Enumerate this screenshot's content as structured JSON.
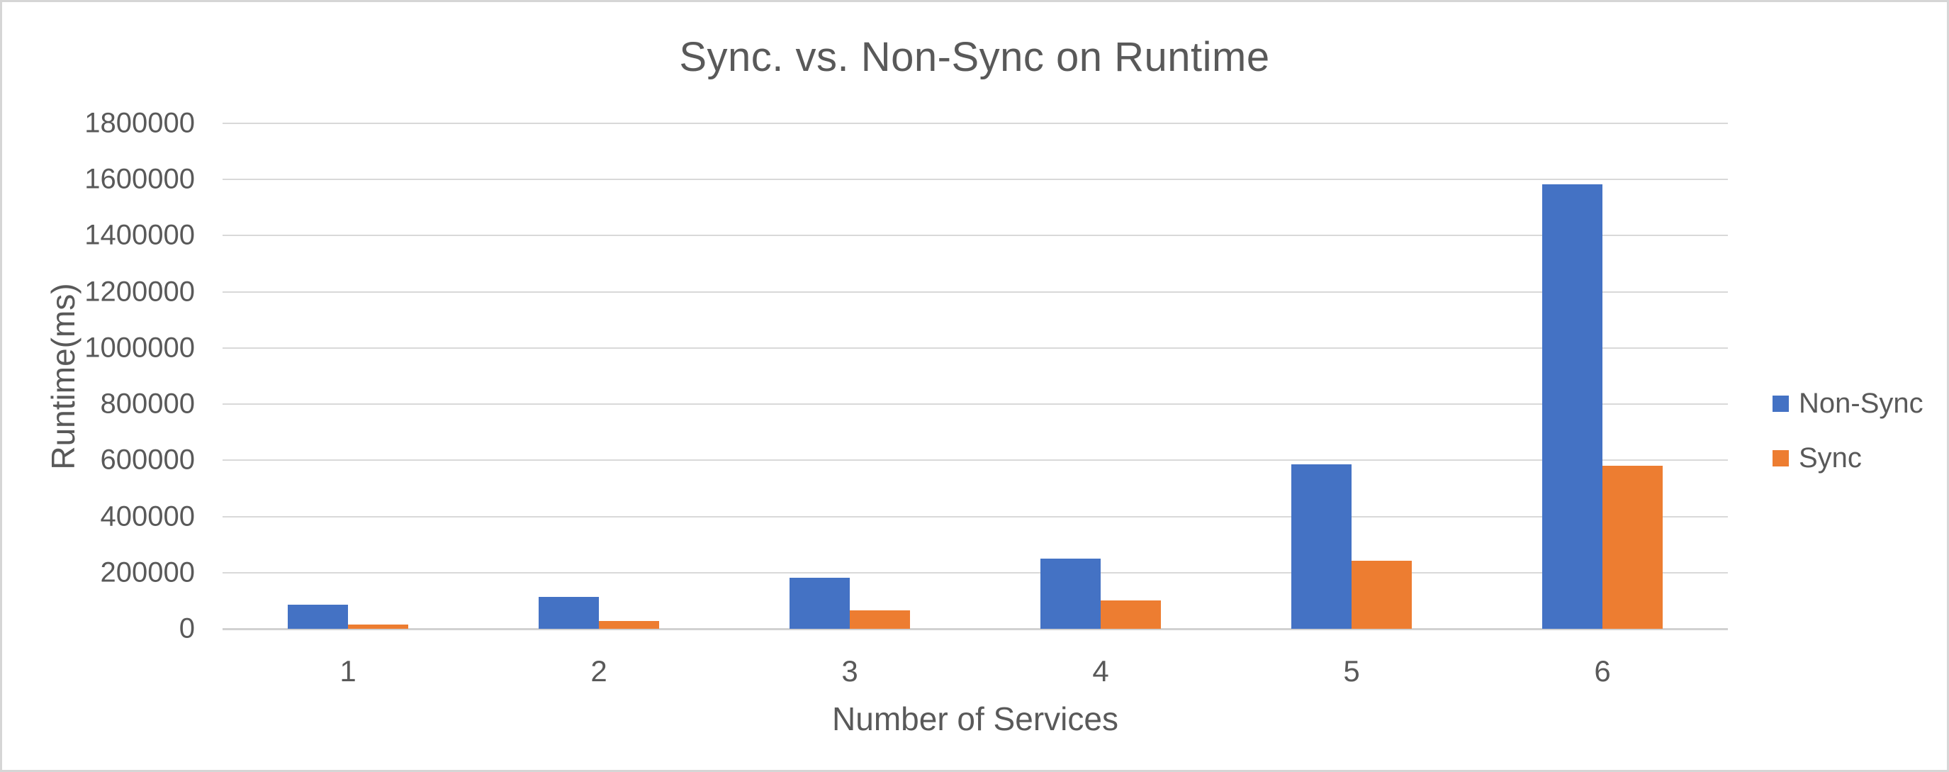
{
  "chart_data": {
    "type": "bar",
    "title": "Sync. vs. Non-Sync on Runtime",
    "xlabel": "Number of Services",
    "ylabel": "Runtime(ms)",
    "categories": [
      "1",
      "2",
      "3",
      "4",
      "5",
      "6"
    ],
    "series": [
      {
        "name": "Non-Sync",
        "color": "#4472C4",
        "values": [
          87000,
          113000,
          182000,
          250000,
          585000,
          1582000
        ]
      },
      {
        "name": "Sync",
        "color": "#ED7D31",
        "values": [
          15000,
          28000,
          66000,
          100000,
          243000,
          580000
        ]
      }
    ],
    "ylim": [
      0,
      1800000
    ],
    "ytick_step": 200000,
    "ytick_labels": [
      "0",
      "200000",
      "400000",
      "600000",
      "800000",
      "1000000",
      "1200000",
      "1400000",
      "1600000",
      "1800000"
    ],
    "grid": "horizontal",
    "legend_position": "right",
    "gridline_color": "#D9D9D9",
    "axis_line_color": "#D1D1D1",
    "text_color": "#595959"
  }
}
